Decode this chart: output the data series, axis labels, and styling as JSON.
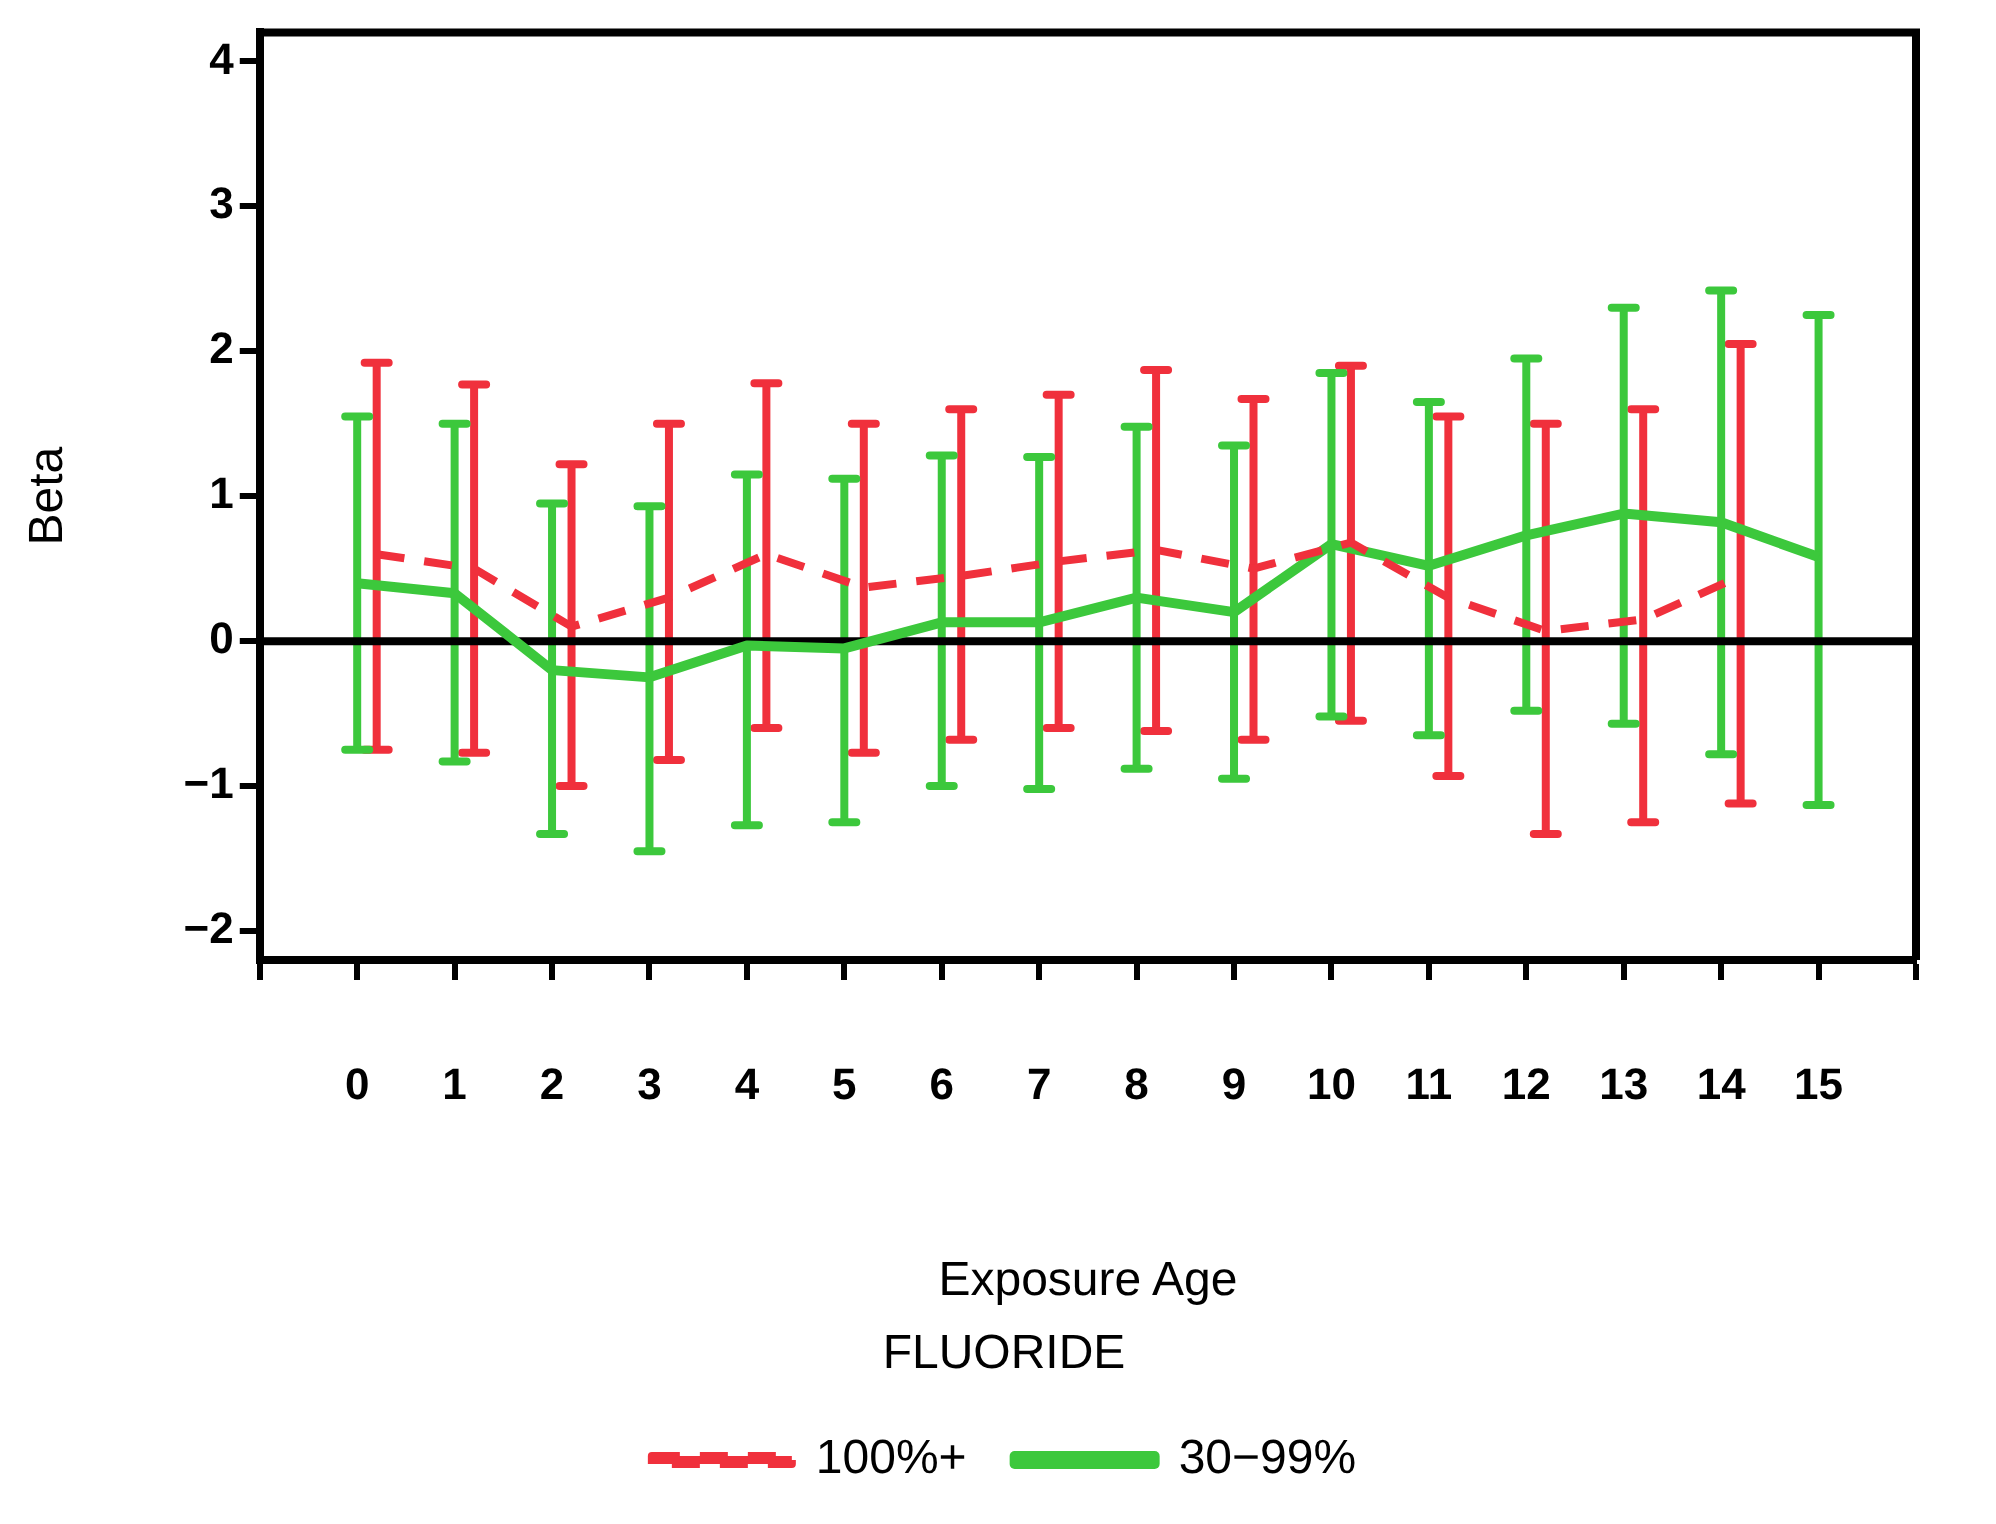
{
  "chart_data": {
    "type": "line",
    "xlabel": "Exposure Age",
    "ylabel": "Beta",
    "legend_title": "FLUORIDE",
    "legend": "bottom",
    "grid": false,
    "marker": "none",
    "xlim": [
      -1,
      16
    ],
    "xticks": [
      {
        "value": -1,
        "label": null
      },
      0,
      1,
      2,
      3,
      4,
      5,
      6,
      7,
      8,
      9,
      10,
      11,
      12,
      13,
      14,
      15,
      {
        "value": 16,
        "label": null
      }
    ],
    "ylim": [
      -2.2,
      4.2
    ],
    "yticks": [
      {
        "value": -2,
        "label": "−2"
      },
      {
        "value": -1,
        "label": "−1"
      },
      0,
      1,
      2,
      3,
      4
    ],
    "ref_lines": [
      {
        "axis": "y",
        "value": 0,
        "color": "#000000"
      }
    ],
    "series": [
      {
        "name": "100%+",
        "color": "#f0303c",
        "line_style": "dashed",
        "x": [
          0.2,
          1.2,
          2.2,
          3.2,
          4.2,
          5.2,
          6.2,
          7.2,
          8.2,
          9.2,
          10.2,
          11.2,
          12.2,
          13.2,
          14.2
        ],
        "values": [
          0.6,
          0.5,
          0.1,
          0.3,
          0.6,
          0.37,
          0.45,
          0.55,
          0.63,
          0.5,
          0.68,
          0.3,
          0.07,
          0.15,
          0.45
        ],
        "errors": [
          [
            -0.75,
            1.92
          ],
          [
            -0.77,
            1.77
          ],
          [
            -1.0,
            1.22
          ],
          [
            -0.82,
            1.5
          ],
          [
            -0.6,
            1.78
          ],
          [
            -0.77,
            1.5
          ],
          [
            -0.68,
            1.6
          ],
          [
            -0.6,
            1.7
          ],
          [
            -0.62,
            1.87
          ],
          [
            -0.68,
            1.67
          ],
          [
            -0.55,
            1.9
          ],
          [
            -0.93,
            1.55
          ],
          [
            -1.33,
            1.5
          ],
          [
            -1.25,
            1.6
          ],
          [
            -1.12,
            2.05
          ]
        ]
      },
      {
        "name": "30−99%",
        "color": "#3cc83c",
        "line_style": "solid",
        "x": [
          0,
          1,
          2,
          3,
          4,
          5,
          6,
          7,
          8,
          9,
          10,
          11,
          12,
          13,
          14,
          15
        ],
        "values": [
          0.4,
          0.33,
          -0.2,
          -0.25,
          -0.03,
          -0.05,
          0.13,
          0.13,
          0.3,
          0.2,
          0.67,
          0.52,
          0.73,
          0.88,
          0.82,
          0.58
        ],
        "errors": [
          [
            -0.75,
            1.55
          ],
          [
            -0.83,
            1.5
          ],
          [
            -1.33,
            0.95
          ],
          [
            -1.45,
            0.93
          ],
          [
            -1.27,
            1.15
          ],
          [
            -1.25,
            1.12
          ],
          [
            -1.0,
            1.28
          ],
          [
            -1.02,
            1.27
          ],
          [
            -0.88,
            1.48
          ],
          [
            -0.95,
            1.35
          ],
          [
            -0.52,
            1.85
          ],
          [
            -0.65,
            1.65
          ],
          [
            -0.48,
            1.95
          ],
          [
            -0.57,
            2.3
          ],
          [
            -0.78,
            2.42
          ],
          [
            -1.13,
            2.25
          ]
        ]
      }
    ]
  }
}
